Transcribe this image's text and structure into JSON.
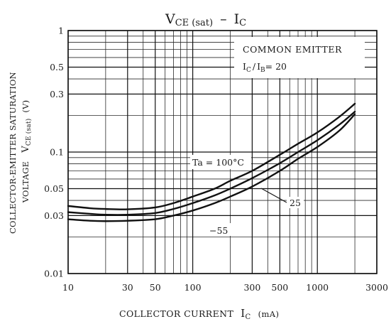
{
  "chart_data": {
    "type": "line",
    "title": {
      "main": "V",
      "main_sub": "CE (sat)",
      "sep": "–",
      "right": "I",
      "right_sub": "C"
    },
    "x_axis": {
      "scale": "log",
      "range": [
        10,
        3000
      ],
      "ticks": [
        10,
        30,
        50,
        100,
        300,
        500,
        1000,
        3000
      ],
      "tick_labels": [
        "10",
        "30",
        "50",
        "100",
        "300",
        "500",
        "1000",
        "3000"
      ],
      "label": {
        "main": "COLLECTOR CURRENT",
        "sym": "I",
        "sub": "C",
        "unit": "(mA)"
      }
    },
    "y_axis": {
      "scale": "log",
      "range": [
        0.01,
        1
      ],
      "ticks": [
        0.01,
        0.03,
        0.05,
        0.1,
        0.3,
        0.5,
        1
      ],
      "tick_labels": [
        "0.01",
        "0.03",
        "0.05",
        "0.1",
        "0.3",
        "0.5",
        "1"
      ],
      "label_line1": "COLLECTOR-EMITTER SATURATION",
      "label_line2": {
        "main": "VOLTAGE",
        "sym": "V",
        "sub": "CE (sat)",
        "unit": "(V)"
      }
    },
    "grid": true,
    "legend_box": {
      "line1": "COMMON EMITTER",
      "line2": {
        "a": "I",
        "a_sub": "C",
        "slash": "/",
        "b": "I",
        "b_sub": "B",
        "value": "= 20"
      }
    },
    "series": [
      {
        "name": "Ta = 100°C",
        "x": [
          10,
          15,
          20,
          30,
          50,
          70,
          100,
          150,
          200,
          300,
          500,
          700,
          1000,
          1500,
          2000
        ],
        "y": [
          0.036,
          0.0345,
          0.034,
          0.0338,
          0.035,
          0.038,
          0.043,
          0.05,
          0.058,
          0.07,
          0.095,
          0.117,
          0.145,
          0.195,
          0.25
        ]
      },
      {
        "name": "25",
        "x": [
          10,
          15,
          20,
          30,
          50,
          70,
          100,
          150,
          200,
          300,
          500,
          700,
          1000,
          1500,
          2000
        ],
        "y": [
          0.032,
          0.031,
          0.0305,
          0.0305,
          0.0315,
          0.034,
          0.038,
          0.044,
          0.05,
          0.061,
          0.081,
          0.1,
          0.125,
          0.168,
          0.215
        ]
      },
      {
        "name": "−55",
        "x": [
          10,
          15,
          20,
          30,
          50,
          70,
          100,
          150,
          200,
          300,
          500,
          700,
          1000,
          1500,
          2000
        ],
        "y": [
          0.028,
          0.0272,
          0.027,
          0.0272,
          0.028,
          0.03,
          0.033,
          0.038,
          0.043,
          0.052,
          0.07,
          0.088,
          0.11,
          0.15,
          0.205
        ]
      }
    ]
  }
}
